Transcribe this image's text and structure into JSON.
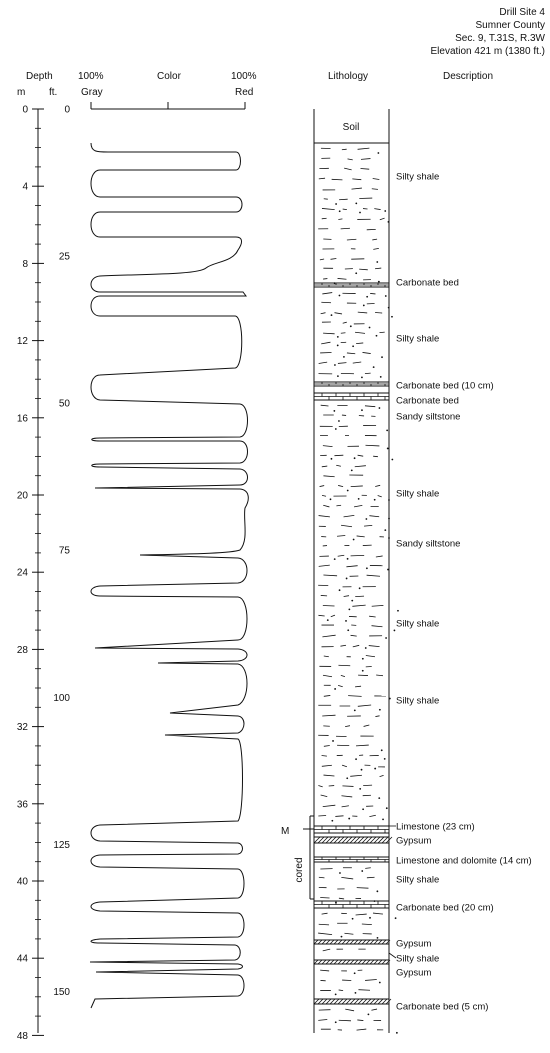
{
  "site": {
    "line1": "Drill Site 4",
    "line2": "Sumner County",
    "line3": "Sec. 9, T.31S, R.3W",
    "line4": "Elevation 421 m (1380 ft.)"
  },
  "headers": {
    "depth": "Depth",
    "m": "m",
    "ft": "ft.",
    "gray_pct": "100%",
    "gray": "Gray",
    "color": "Color",
    "red_pct": "100%",
    "red": "Red",
    "lithology": "Lithology",
    "description": "Description"
  },
  "depth_m_ticks": [
    "0",
    "4",
    "8",
    "12",
    "16",
    "20",
    "24",
    "28",
    "32",
    "36",
    "40",
    "44",
    "48"
  ],
  "depth_ft_ticks": [
    "0",
    "25",
    "50",
    "75",
    "100",
    "125",
    "150"
  ],
  "lithology": {
    "soil": "Soil",
    "m_marker": "M",
    "cored": "cored"
  },
  "descriptions": [
    {
      "text": "Silty shale"
    },
    {
      "text": "Carbonate bed"
    },
    {
      "text": "Silty shale"
    },
    {
      "text": "Carbonate bed (10 cm)"
    },
    {
      "text": "Carbonate bed"
    },
    {
      "text": "Sandy siltstone"
    },
    {
      "text": "Silty shale"
    },
    {
      "text": "Sandy siltstone"
    },
    {
      "text": "Silty shale"
    },
    {
      "text": "Silty shale"
    },
    {
      "text": "Limestone (23 cm)"
    },
    {
      "text": "Gypsum"
    },
    {
      "text": "Limestone and dolomite (14 cm)"
    },
    {
      "text": "Silty shale"
    },
    {
      "text": "Carbonate bed (20 cm)"
    },
    {
      "text": "Gypsum"
    },
    {
      "text": "Silty shale"
    },
    {
      "text": "Gypsum"
    },
    {
      "text": "Carbonate bed (5 cm)"
    }
  ]
}
